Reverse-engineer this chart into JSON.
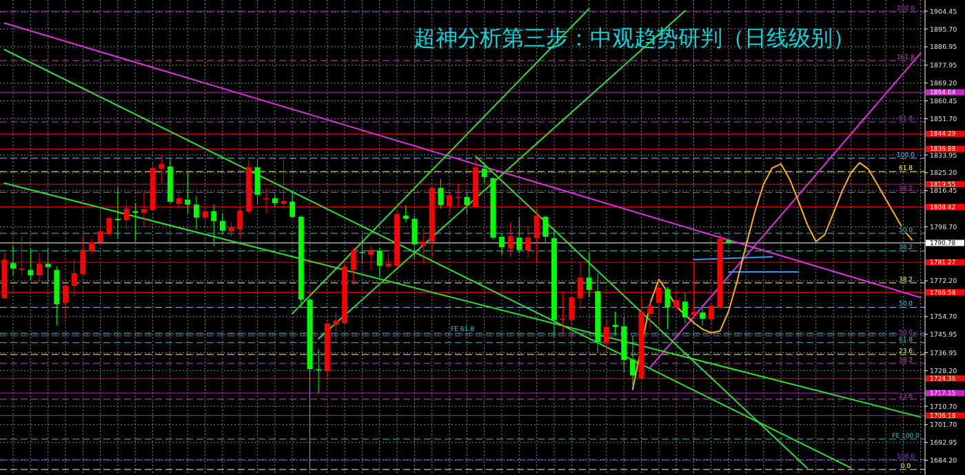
{
  "chart_data": {
    "type": "candlestick",
    "title": "超神分析第三步：中观趋势研判（日线级别）",
    "categories": [
      null,
      null,
      null,
      null,
      null,
      null,
      null,
      null,
      null,
      null,
      null,
      null,
      null,
      null,
      null,
      null,
      null,
      null,
      null,
      null,
      null,
      null,
      null,
      null,
      null,
      null,
      null,
      null,
      null,
      null,
      null,
      null,
      null,
      null,
      null,
      null,
      null,
      null,
      null,
      null,
      null,
      null,
      null,
      null,
      null,
      null,
      null,
      null,
      null,
      null,
      null,
      null,
      null,
      null,
      null,
      null,
      null,
      null,
      null,
      null,
      null,
      null,
      null,
      null,
      null,
      null,
      null,
      null,
      null,
      null,
      null,
      null,
      null,
      null,
      null,
      null,
      null,
      null,
      null,
      null,
      null,
      null,
      null,
      null,
      null,
      null,
      null,
      null,
      null,
      null,
      null,
      null,
      null,
      null,
      null,
      null,
      null,
      null,
      null,
      null,
      null,
      null,
      null,
      null,
      null,
      null
    ],
    "ylim": [
      1677.0,
      1909.9
    ],
    "yticks": [
      {
        "value": 1904.45,
        "label": "1904.45"
      },
      {
        "value": 1895.7,
        "label": "1895.70"
      },
      {
        "value": 1886.95,
        "label": "1886.95"
      },
      {
        "value": 1877.95,
        "label": "1877.95"
      },
      {
        "value": 1869.2,
        "label": "1869.20"
      },
      {
        "value": 1860.45,
        "label": "1860.45"
      },
      {
        "value": 1851.7,
        "label": "1851.70"
      },
      {
        "value": 1833.95,
        "label": "1833.95"
      },
      {
        "value": 1825.2,
        "label": "1825.20"
      },
      {
        "value": 1816.45,
        "label": "1816.45"
      },
      {
        "value": 1798.7,
        "label": "1798.70"
      },
      {
        "value": 1772.2,
        "label": "1772.20"
      },
      {
        "value": 1754.7,
        "label": "1754.70"
      },
      {
        "value": 1745.95,
        "label": "1745.95"
      },
      {
        "value": 1736.95,
        "label": "1736.95"
      },
      {
        "value": 1728.2,
        "label": "1728.20"
      },
      {
        "value": 1710.7,
        "label": "1710.70"
      },
      {
        "value": 1701.7,
        "label": "1701.70"
      },
      {
        "value": 1692.95,
        "label": "1692.95"
      },
      {
        "value": 1684.2,
        "label": "1684.20"
      }
    ],
    "grid": true,
    "tick_labels": "y",
    "series": [
      {
        "ohlc": [
          [
            1763.7,
            1786.0,
            1763.7,
            1782.6
          ],
          [
            1780.9,
            1789.4,
            1774.9,
            1778.2
          ],
          [
            1777.5,
            1794.1,
            1774.9,
            1778.2
          ],
          [
            1777.5,
            1787.7,
            1772.5,
            1774.9
          ],
          [
            1774.9,
            1786.0,
            1771.5,
            1780.6
          ],
          [
            1780.6,
            1788.4,
            1770.5,
            1778.9
          ],
          [
            1777.5,
            1779.2,
            1750.3,
            1760.7
          ],
          [
            1761.4,
            1770.5,
            1753.6,
            1769.8
          ],
          [
            1769.8,
            1782.6,
            1764.7,
            1775.9
          ],
          [
            1775.5,
            1794.1,
            1774.9,
            1787.4
          ],
          [
            1786.7,
            1792.8,
            1785.0,
            1791.1
          ],
          [
            1791.1,
            1808.6,
            1790.7,
            1796.5
          ],
          [
            1795.1,
            1804.2,
            1794.1,
            1802.9
          ],
          [
            1802.6,
            1818.1,
            1792.8,
            1801.9
          ],
          [
            1801.9,
            1812.0,
            1797.5,
            1807.6
          ],
          [
            1806.3,
            1810.3,
            1791.8,
            1805.6
          ],
          [
            1805.6,
            1816.4,
            1798.5,
            1807.3
          ],
          [
            1806.9,
            1829.9,
            1806.3,
            1827.5
          ],
          [
            1827.2,
            1833.9,
            1819.8,
            1829.5
          ],
          [
            1828.2,
            1831.6,
            1810.3,
            1811.0
          ],
          [
            1810.0,
            1816.4,
            1807.6,
            1812.7
          ],
          [
            1812.0,
            1825.5,
            1805.3,
            1809.6
          ],
          [
            1809.6,
            1813.7,
            1797.5,
            1803.2
          ],
          [
            1803.2,
            1808.6,
            1797.5,
            1806.3
          ],
          [
            1806.3,
            1809.6,
            1789.4,
            1801.5
          ],
          [
            1801.5,
            1805.3,
            1795.1,
            1796.8
          ],
          [
            1796.5,
            1800.9,
            1794.1,
            1798.5
          ],
          [
            1797.5,
            1808.6,
            1792.8,
            1806.6
          ],
          [
            1806.3,
            1831.2,
            1805.3,
            1827.9
          ],
          [
            1827.9,
            1831.6,
            1809.6,
            1814.4
          ],
          [
            1812.3,
            1817.7,
            1805.3,
            1812.7
          ],
          [
            1812.7,
            1814.4,
            1808.6,
            1810.3
          ],
          [
            1810.0,
            1831.2,
            1807.6,
            1811.3
          ],
          [
            1811.0,
            1815.4,
            1802.9,
            1803.6
          ],
          [
            1803.6,
            1804.2,
            1759.0,
            1763.0
          ],
          [
            1763.0,
            1763.7,
            1680.0,
            1728.9
          ],
          [
            1728.9,
            1738.5,
            1717.1,
            1728.6
          ],
          [
            1727.9,
            1752.3,
            1723.8,
            1751.3
          ],
          [
            1750.6,
            1757.0,
            1742.2,
            1752.6
          ],
          [
            1751.6,
            1780.6,
            1751.3,
            1779.2
          ],
          [
            1777.5,
            1788.4,
            1770.5,
            1787.0
          ],
          [
            1786.3,
            1794.1,
            1780.6,
            1786.0
          ],
          [
            1785.0,
            1789.4,
            1777.2,
            1787.4
          ],
          [
            1787.0,
            1788.4,
            1773.8,
            1779.6
          ],
          [
            1779.2,
            1786.0,
            1778.2,
            1780.6
          ],
          [
            1779.6,
            1806.3,
            1778.9,
            1804.9
          ],
          [
            1804.2,
            1809.3,
            1800.9,
            1802.6
          ],
          [
            1802.6,
            1804.2,
            1782.6,
            1790.1
          ],
          [
            1789.4,
            1797.8,
            1780.6,
            1791.4
          ],
          [
            1791.4,
            1818.1,
            1784.0,
            1817.7
          ],
          [
            1817.7,
            1822.1,
            1807.6,
            1809.3
          ],
          [
            1809.0,
            1815.4,
            1804.2,
            1814.0
          ],
          [
            1813.0,
            1819.8,
            1808.6,
            1813.3
          ],
          [
            1813.3,
            1815.4,
            1805.3,
            1809.3
          ],
          [
            1808.3,
            1833.3,
            1808.0,
            1827.9
          ],
          [
            1827.2,
            1828.9,
            1820.4,
            1823.1
          ],
          [
            1822.5,
            1823.1,
            1792.4,
            1793.4
          ],
          [
            1793.8,
            1795.1,
            1785.0,
            1788.7
          ],
          [
            1788.0,
            1800.9,
            1784.0,
            1794.1
          ],
          [
            1793.4,
            1803.6,
            1785.7,
            1787.4
          ],
          [
            1787.0,
            1798.5,
            1783.3,
            1793.4
          ],
          [
            1793.1,
            1807.6,
            1780.9,
            1804.2
          ],
          [
            1803.6,
            1804.2,
            1790.7,
            1793.8
          ],
          [
            1793.1,
            1797.5,
            1744.5,
            1753.0
          ],
          [
            1753.3,
            1767.1,
            1746.9,
            1753.6
          ],
          [
            1753.0,
            1764.7,
            1742.2,
            1764.1
          ],
          [
            1763.7,
            1781.6,
            1758.0,
            1773.8
          ],
          [
            1773.8,
            1786.0,
            1764.1,
            1767.8
          ],
          [
            1767.1,
            1775.9,
            1737.1,
            1742.2
          ],
          [
            1741.5,
            1753.6,
            1737.8,
            1749.6
          ],
          [
            1750.6,
            1757.0,
            1745.5,
            1749.6
          ],
          [
            1749.9,
            1754.6,
            1727.2,
            1733.4
          ],
          [
            1733.7,
            1745.2,
            1721.1,
            1725.8
          ],
          [
            1724.5,
            1763.7,
            1723.8,
            1757.0
          ],
          [
            1756.0,
            1763.7,
            1748.9,
            1760.0
          ],
          [
            1761.4,
            1772.5,
            1747.9,
            1768.8
          ],
          [
            1768.1,
            1769.1,
            1748.6,
            1759.3
          ],
          [
            1759.0,
            1768.1,
            1758.0,
            1762.7
          ],
          [
            1762.0,
            1766.4,
            1751.3,
            1754.3
          ],
          [
            1755.7,
            1781.6,
            1753.6,
            1757.0
          ],
          [
            1756.7,
            1759.0,
            1750.3,
            1753.6
          ],
          [
            1753.3,
            1761.4,
            1750.3,
            1760.0
          ],
          [
            1759.0,
            1795.1,
            1758.7,
            1792.8
          ],
          [
            1792.1,
            1792.4,
            1790.4,
            1790.7
          ],
          null,
          null,
          null,
          null,
          null,
          null,
          null,
          null,
          null,
          null,
          null,
          null,
          null,
          null,
          null,
          null,
          null,
          null,
          null,
          null,
          null,
          null
        ],
        "colors": [
          "#ff0000",
          "#00ff00",
          "#ff0000",
          "#00ff00",
          "#ff0000",
          "#00ff00",
          "#00ff00",
          "#ff0000",
          "#ff0000",
          "#ff0000",
          "#ff0000",
          "#ff0000",
          "#ff0000",
          "#00ff00",
          "#ff0000",
          "#00ff00",
          "#ff0000",
          "#ff0000",
          "#ff0000",
          "#00ff00",
          "#ff0000",
          "#00ff00",
          "#00ff00",
          "#ff0000",
          "#00ff00",
          "#00ff00",
          "#ff0000",
          "#ff0000",
          "#ff0000",
          "#00ff00",
          "#ff0000",
          "#00ff00",
          "#ff0000",
          "#00ff00",
          "#00ff00",
          "#00ff00",
          "#00ff00",
          "#ff0000",
          "#ff0000",
          "#ff0000",
          "#ff0000",
          "#00ff00",
          "#ff0000",
          "#00ff00",
          "#ff0000",
          "#ff0000",
          "#00ff00",
          "#00ff00",
          "#ff0000",
          "#ff0000",
          "#00ff00",
          "#ff0000",
          "#ff0000",
          "#00ff00",
          "#ff0000",
          "#00ff00",
          "#00ff00",
          "#00ff00",
          "#ff0000",
          "#00ff00",
          "#ff0000",
          "#ff0000",
          "#00ff00",
          "#00ff00",
          "#ff0000",
          "#ff0000",
          "#ff0000",
          "#00ff00",
          "#00ff00",
          "#ff0000",
          "#00ff00",
          "#00ff00",
          "#00ff00",
          "#ff0000",
          "#ff0000",
          "#ff0000",
          "#00ff00",
          "#ff0000",
          "#00ff00",
          "#ff0000",
          "#00ff00",
          "#ff0000",
          "#ff0000",
          "#00ff00",
          null,
          null,
          null,
          null,
          null,
          null,
          null,
          null,
          null,
          null,
          null,
          null,
          null,
          null,
          null,
          null,
          null,
          null,
          null,
          null,
          null,
          null
        ]
      },
      {
        "type": "line",
        "color": "#dd33dd",
        "values": [
          1898.6,
          null,
          null,
          null,
          null,
          null,
          null,
          null,
          null,
          null,
          null,
          null,
          null,
          null,
          null,
          null,
          null,
          null,
          null,
          null,
          null,
          null,
          null,
          null,
          null,
          null,
          null,
          null,
          null,
          null,
          null,
          null,
          null,
          null,
          null,
          null,
          null,
          null,
          null,
          null,
          null,
          null,
          null,
          null,
          null,
          null,
          null,
          null,
          null,
          null,
          null,
          null,
          null,
          null,
          null,
          null,
          null,
          null,
          null,
          null,
          null,
          null,
          null,
          null,
          null,
          null,
          null,
          null,
          null,
          null,
          null,
          null,
          null,
          null,
          null,
          null,
          null,
          null,
          null,
          null,
          null,
          null,
          null,
          null,
          null,
          null,
          null,
          null,
          null,
          null,
          null,
          null,
          null,
          null,
          null,
          null,
          null,
          null,
          null,
          null,
          null,
          null,
          null,
          null,
          null,
          1764.0
        ]
      },
      {
        "type": "line",
        "color": "#dd33dd",
        "values": [
          null,
          null,
          null,
          null,
          null,
          null,
          null,
          null,
          null,
          null,
          null,
          null,
          null,
          null,
          null,
          null,
          null,
          null,
          null,
          null,
          null,
          null,
          null,
          null,
          null,
          null,
          null,
          null,
          null,
          null,
          null,
          null,
          null,
          null,
          null,
          null,
          null,
          null,
          null,
          null,
          null,
          null,
          null,
          null,
          null,
          null,
          null,
          null,
          null,
          null,
          null,
          null,
          null,
          null,
          null,
          null,
          null,
          null,
          null,
          null,
          null,
          null,
          null,
          null,
          null,
          null,
          null,
          null,
          null,
          null,
          null,
          null,
          null,
          null,
          1729.8,
          null,
          null,
          null,
          null,
          null,
          null,
          null,
          null,
          null,
          null,
          null,
          null,
          null,
          null,
          null,
          null,
          null,
          null,
          null,
          null,
          null,
          null,
          null,
          null,
          null,
          null,
          null,
          null,
          null,
          null,
          1883.9
        ]
      },
      {
        "type": "line",
        "color": "#33dd33",
        "values": [
          1885.6,
          null,
          null,
          null,
          null,
          null,
          null,
          null,
          null,
          null,
          null,
          null,
          null,
          null,
          null,
          null,
          null,
          null,
          null,
          null,
          null,
          null,
          null,
          null,
          null,
          null,
          null,
          null,
          null,
          null,
          null,
          null,
          null,
          null,
          null,
          null,
          null,
          null,
          null,
          null,
          null,
          null,
          null,
          null,
          null,
          null,
          null,
          null,
          null,
          null,
          null,
          null,
          null,
          null,
          null,
          null,
          null,
          null,
          null,
          null,
          null,
          null,
          null,
          null,
          null,
          null,
          null,
          null,
          null,
          null,
          null,
          null,
          null,
          null,
          null,
          null,
          null,
          null,
          null,
          null,
          null,
          null,
          null,
          null,
          null,
          null,
          null,
          null,
          null,
          null,
          null,
          null,
          null,
          null,
          null,
          null,
          null,
          1680.5,
          null,
          null,
          null,
          null,
          null,
          null,
          null,
          null
        ]
      },
      {
        "type": "line",
        "color": "#33dd33",
        "values": [
          1820.1,
          null,
          null,
          null,
          null,
          null,
          null,
          null,
          null,
          null,
          null,
          null,
          null,
          null,
          null,
          null,
          null,
          null,
          null,
          null,
          null,
          null,
          null,
          null,
          null,
          null,
          null,
          null,
          null,
          null,
          null,
          null,
          null,
          null,
          null,
          null,
          null,
          null,
          null,
          null,
          null,
          null,
          null,
          null,
          null,
          null,
          null,
          null,
          null,
          null,
          null,
          null,
          null,
          null,
          null,
          null,
          null,
          null,
          null,
          null,
          null,
          null,
          null,
          null,
          null,
          null,
          null,
          null,
          null,
          null,
          null,
          null,
          null,
          null,
          null,
          null,
          null,
          null,
          null,
          null,
          null,
          null,
          null,
          null,
          null,
          null,
          null,
          null,
          null,
          null,
          null,
          null,
          null,
          null,
          null,
          null,
          null,
          null,
          null,
          null,
          null,
          null,
          null,
          null,
          null,
          1705.4
        ]
      },
      {
        "type": "line",
        "color": "#33dd33",
        "values": [
          null,
          null,
          null,
          null,
          null,
          null,
          null,
          null,
          null,
          null,
          null,
          null,
          null,
          null,
          null,
          null,
          null,
          null,
          null,
          null,
          null,
          null,
          null,
          null,
          null,
          null,
          null,
          null,
          null,
          null,
          null,
          null,
          null,
          null,
          null,
          null,
          null,
          null,
          null,
          null,
          null,
          null,
          null,
          null,
          null,
          null,
          null,
          null,
          null,
          null,
          null,
          null,
          null,
          null,
          1833.3,
          null,
          null,
          null,
          null,
          null,
          null,
          null,
          null,
          null,
          null,
          null,
          null,
          null,
          null,
          null,
          null,
          null,
          null,
          null,
          null,
          null,
          null,
          null,
          null,
          null,
          null,
          null,
          null,
          null,
          null,
          null,
          null,
          null,
          null,
          null,
          null,
          null,
          1680.4,
          null,
          null,
          null,
          null,
          null,
          null,
          null,
          null,
          null,
          null,
          null,
          null,
          null
        ]
      },
      {
        "type": "line",
        "color": "#33dd33",
        "values": [
          null,
          null,
          null,
          null,
          null,
          null,
          null,
          null,
          null,
          null,
          null,
          null,
          null,
          null,
          null,
          null,
          null,
          null,
          null,
          null,
          null,
          null,
          null,
          null,
          null,
          null,
          null,
          null,
          null,
          null,
          null,
          null,
          null,
          null,
          null,
          null,
          1743.8,
          null,
          null,
          null,
          null,
          null,
          null,
          null,
          null,
          null,
          null,
          null,
          null,
          null,
          null,
          null,
          null,
          null,
          null,
          null,
          null,
          null,
          null,
          null,
          null,
          null,
          null,
          null,
          null,
          null,
          null,
          null,
          null,
          null,
          null,
          null,
          null,
          null,
          null,
          null,
          null,
          null,
          1904.6,
          null,
          null,
          null,
          null,
          null,
          null,
          null,
          null,
          null,
          null,
          null,
          null,
          null,
          null,
          null,
          null,
          null,
          null,
          null,
          null,
          null,
          null,
          null,
          null,
          null,
          null,
          null
        ]
      },
      {
        "type": "line",
        "color": "#33dd33",
        "values": [
          null,
          null,
          null,
          null,
          null,
          null,
          null,
          null,
          null,
          null,
          null,
          null,
          null,
          null,
          null,
          null,
          null,
          null,
          null,
          null,
          null,
          null,
          null,
          null,
          null,
          null,
          null,
          null,
          null,
          null,
          null,
          null,
          null,
          1756.1,
          null,
          null,
          null,
          null,
          null,
          null,
          null,
          null,
          null,
          null,
          null,
          null,
          null,
          null,
          null,
          null,
          null,
          null,
          null,
          null,
          null,
          null,
          null,
          null,
          null,
          null,
          null,
          null,
          null,
          null,
          null,
          null,
          null,
          1905.6,
          null,
          null,
          null,
          null,
          null,
          null,
          null,
          null,
          null,
          null,
          null,
          null,
          null,
          null,
          null,
          null,
          null,
          null,
          null,
          null,
          null,
          null,
          null,
          null,
          null,
          null,
          null,
          null,
          null,
          null,
          null,
          null,
          null,
          null,
          null,
          null,
          null,
          null
        ]
      },
      {
        "type": "line",
        "color": "#3399ff",
        "values": [
          null,
          null,
          null,
          null,
          null,
          null,
          null,
          null,
          null,
          null,
          null,
          null,
          null,
          null,
          null,
          null,
          null,
          null,
          null,
          null,
          null,
          null,
          null,
          null,
          null,
          null,
          null,
          null,
          null,
          null,
          null,
          null,
          null,
          null,
          null,
          null,
          null,
          null,
          null,
          null,
          null,
          null,
          null,
          null,
          null,
          null,
          null,
          null,
          null,
          null,
          null,
          null,
          null,
          null,
          null,
          null,
          null,
          null,
          null,
          null,
          null,
          null,
          null,
          null,
          null,
          null,
          null,
          null,
          null,
          null,
          null,
          null,
          null,
          null,
          null,
          null,
          null,
          null,
          null,
          1782.6,
          null,
          null,
          null,
          null,
          null,
          null,
          null,
          null,
          1784.0,
          null,
          null,
          null,
          null,
          null,
          null,
          null,
          null,
          null,
          null,
          null,
          null,
          null,
          null,
          null,
          null,
          null
        ]
      },
      {
        "type": "line",
        "color": "#3399ff",
        "values": [
          null,
          null,
          null,
          null,
          null,
          null,
          null,
          null,
          null,
          null,
          null,
          null,
          null,
          null,
          null,
          null,
          null,
          null,
          null,
          null,
          null,
          null,
          null,
          null,
          null,
          null,
          null,
          null,
          null,
          null,
          null,
          null,
          null,
          null,
          null,
          null,
          null,
          null,
          null,
          null,
          null,
          null,
          null,
          null,
          null,
          null,
          null,
          null,
          null,
          null,
          null,
          null,
          null,
          null,
          null,
          null,
          null,
          null,
          null,
          null,
          null,
          null,
          null,
          null,
          null,
          null,
          null,
          null,
          null,
          null,
          null,
          null,
          null,
          null,
          null,
          null,
          null,
          null,
          null,
          null,
          null,
          null,
          null,
          1776.6,
          null,
          null,
          null,
          null,
          null,
          null,
          null,
          1776.6,
          null,
          null,
          null,
          null,
          null,
          null,
          null,
          null,
          null,
          null,
          null,
          null,
          null,
          null
        ]
      },
      {
        "type": "line",
        "color": "#ffb020",
        "values": [
          null,
          null,
          null,
          null,
          null,
          null,
          null,
          null,
          null,
          null,
          null,
          null,
          null,
          null,
          null,
          null,
          null,
          null,
          null,
          null,
          null,
          null,
          null,
          null,
          null,
          null,
          null,
          null,
          null,
          null,
          null,
          null,
          null,
          null,
          null,
          null,
          null,
          null,
          null,
          null,
          null,
          null,
          null,
          null,
          null,
          null,
          null,
          null,
          null,
          null,
          null,
          null,
          null,
          null,
          null,
          null,
          null,
          null,
          null,
          null,
          null,
          null,
          null,
          null,
          null,
          null,
          null,
          null,
          null,
          null,
          null,
          null,
          1719.0,
          null,
          1761.2,
          1772.9,
          1766.8,
          1759.8,
          1755.5,
          1751.7,
          1748.5,
          1746.7,
          1747.6,
          1757.4,
          1772.5,
          1789.7,
          1806.0,
          1819.6,
          1827.6,
          1829.5,
          1821.9,
          1811.2,
          1799.9,
          1791.4,
          1794.8,
          1805.4,
          1816.2,
          1825.1,
          1830.1,
          1827.0,
          1819.8,
          1812.3,
          1804.9,
          1797.4,
          1792.4,
          null
        ]
      }
    ],
    "ref_lines": [
      {
        "axis": "y",
        "value": 1864.64,
        "label": "1864.64",
        "color": "#cc22cc",
        "line_style": "solid"
      },
      {
        "axis": "y",
        "value": 1844.29,
        "label": "1844.29",
        "color": "#ff0000",
        "line_style": "solid"
      },
      {
        "axis": "y",
        "value": 1836.88,
        "label": "1836.88",
        "color": "#ff0000",
        "line_style": "solid"
      },
      {
        "axis": "y",
        "value": 1819.55,
        "label": "1819.55",
        "color": "#ff0000",
        "line_style": "solid"
      },
      {
        "axis": "y",
        "value": 1808.42,
        "label": "1808.42",
        "color": "#ff0000",
        "line_style": "solid"
      },
      {
        "axis": "y",
        "value": 1790.78,
        "label": "1790.78",
        "color": "#ffffff",
        "line_style": "solid"
      },
      {
        "axis": "y",
        "value": 1781.27,
        "label": "1781.27",
        "color": "#ff0000",
        "line_style": "solid"
      },
      {
        "axis": "y",
        "value": 1766.58,
        "label": "1766.58",
        "color": "#ff0000",
        "line_style": "solid"
      },
      {
        "axis": "y",
        "value": 1724.36,
        "label": "1724.36",
        "color": "#ff0000",
        "line_style": "solid"
      },
      {
        "axis": "y",
        "value": 1717.15,
        "label": "1717.15",
        "color": "#cc22cc",
        "line_style": "solid"
      },
      {
        "axis": "y",
        "value": 1706.18,
        "label": "1706.18",
        "color": "#ff0000",
        "line_style": "solid"
      },
      {
        "axis": "y",
        "value": 1904.1,
        "color": "#aa44cc",
        "line_style": "dashed"
      },
      {
        "axis": "y",
        "value": 1880.2,
        "color": "#cc44cc",
        "line_style": "dashed"
      },
      {
        "axis": "y",
        "value": 1850.1,
        "color": "#aa44cc",
        "line_style": "dashed"
      },
      {
        "axis": "y",
        "value": 1832.3,
        "color": "#80c0ff",
        "line_style": "dashed"
      },
      {
        "axis": "y",
        "value": 1825.8,
        "color": "#ffff66",
        "line_style": "dashed"
      },
      {
        "axis": "y",
        "value": 1815.6,
        "color": "#cc44cc",
        "line_style": "dashed"
      },
      {
        "axis": "y",
        "value": 1795.5,
        "color": "#40c0c0",
        "line_style": "dashed"
      },
      {
        "axis": "y",
        "value": 1786.9,
        "color": "#40c0c0",
        "line_style": "dashed"
      },
      {
        "axis": "y",
        "value": 1771.2,
        "color": "#ffff66",
        "line_style": "dashed"
      },
      {
        "axis": "y",
        "value": 1759.2,
        "color": "#60c0ff",
        "line_style": "dashed"
      },
      {
        "axis": "y",
        "value": 1745.2,
        "color": "#aa44cc",
        "line_style": "dashed"
      },
      {
        "axis": "y",
        "value": 1741.9,
        "color": "#40c0c0",
        "line_style": "dashed"
      },
      {
        "axis": "y",
        "value": 1736.1,
        "color": "#ffff66",
        "line_style": "dashed"
      },
      {
        "axis": "y",
        "value": 1731.7,
        "color": "#cc44cc",
        "line_style": "dashed"
      },
      {
        "axis": "y",
        "value": 1714.2,
        "color": "#cc44cc",
        "line_style": "dashed"
      },
      {
        "axis": "y",
        "value": 1684.5,
        "color": "#8844ff",
        "line_style": "dashed"
      },
      {
        "axis": "y",
        "value": 1679.7,
        "color": "#ffff66",
        "line_style": "dashed"
      },
      {
        "axis": "y",
        "value": 1746.5,
        "color": "#40c0c0",
        "line_style": "dashed"
      },
      {
        "axis": "y",
        "value": 1694.6,
        "color": "#40c0c0",
        "line_style": "dashed"
      }
    ],
    "annotations": [
      {
        "text": "100.0",
        "y": 1904.1
      },
      {
        "text": "161.8",
        "y": 1880.2
      },
      {
        "text": "61.8",
        "y": 1850.1
      },
      {
        "text": "100.0",
        "y": 1832.3
      },
      {
        "text": "61.8",
        "y": 1825.8
      },
      {
        "text": "38.2",
        "y": 1815.6
      },
      {
        "text": "50.0",
        "y": 1795.5
      },
      {
        "text": "38.2",
        "y": 1786.9
      },
      {
        "text": "38.2",
        "y": 1771.2
      },
      {
        "text": "50.0",
        "y": 1759.2
      },
      {
        "text": "50.0",
        "y": 1745.2
      },
      {
        "text": "61.8",
        "y": 1741.9
      },
      {
        "text": "23.6",
        "y": 1736.1
      },
      {
        "text": "38.2",
        "y": 1731.7
      },
      {
        "text": "23.6",
        "y": 1714.2
      },
      {
        "text": "100.0",
        "y": 1684.5
      },
      {
        "text": "0.0",
        "y": 1679.7
      },
      {
        "text": "FE 61.8",
        "y": 1746.5
      },
      {
        "text": "FE 100.0",
        "y": 1694.6
      }
    ]
  }
}
